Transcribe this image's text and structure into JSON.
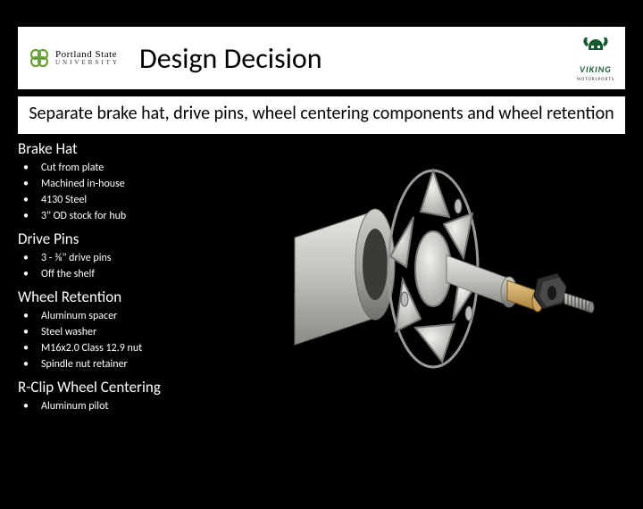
{
  "header": {
    "left_logo": {
      "line1": "Portland State",
      "line2": "UNIVERSITY"
    },
    "title": "Design Decision",
    "right_logo": {
      "brand": "VIKING",
      "sub": "MOTORSPORTS"
    }
  },
  "subhead": "Separate brake hat, drive pins, wheel centering components  and wheel retention",
  "sections": [
    {
      "title": "Brake Hat",
      "items": [
        "Cut from plate",
        "Machined in-house",
        "4130 Steel",
        "3\" OD stock for hub"
      ]
    },
    {
      "title": "Drive Pins",
      "items": [
        "3 -  ⅜\" drive pins",
        "Off the shelf"
      ]
    },
    {
      "title": "Wheel Retention",
      "items": [
        "Aluminum spacer",
        "Steel washer",
        "M16x2.0 Class 12.9 nut",
        "Spindle nut retainer"
      ]
    },
    {
      "title": "R-Clip Wheel Centering",
      "items": [
        "Aluminum pilot"
      ]
    }
  ],
  "colors": {
    "psu_green": "#6a9e3f",
    "viking_green": "#155a2e",
    "hub_metal_light": "#d8d8d6",
    "hub_metal_mid": "#b8b8b4",
    "hub_metal_dark": "#8a8a86",
    "gold": "#c9a05a",
    "nut_dark": "#2b2b2b"
  }
}
